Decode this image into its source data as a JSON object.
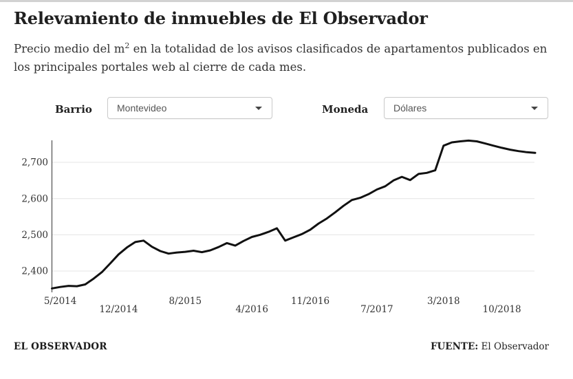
{
  "header": {
    "title": "Relevamiento de inmuebles de El Observador",
    "subtitle_prefix": "Precio medio del m",
    "subtitle_sup": "2",
    "subtitle_rest": " en la totalidad de los avisos clasificados de apartamentos publicados en los principales portales web al cierre de cada mes."
  },
  "controls": {
    "barrio": {
      "label": "Barrio",
      "value": "Montevideo"
    },
    "moneda": {
      "label": "Moneda",
      "value": "Dólares"
    }
  },
  "chart_data": {
    "type": "line",
    "title": "Relevamiento de inmuebles de El Observador",
    "xlabel": "",
    "ylabel": "",
    "frequency": "monthly",
    "x_start": "4/2014",
    "x_end": "2/2019",
    "values": [
      2352,
      2356,
      2359,
      2358,
      2363,
      2379,
      2397,
      2421,
      2446,
      2465,
      2480,
      2484,
      2467,
      2455,
      2448,
      2451,
      2453,
      2456,
      2452,
      2457,
      2466,
      2477,
      2470,
      2483,
      2494,
      2500,
      2508,
      2518,
      2484,
      2493,
      2502,
      2514,
      2531,
      2545,
      2562,
      2580,
      2596,
      2602,
      2612,
      2625,
      2634,
      2650,
      2660,
      2651,
      2668,
      2671,
      2678,
      2746,
      2755,
      2758,
      2760,
      2758,
      2752,
      2746,
      2740,
      2735,
      2731,
      2728,
      2726
    ],
    "x_ticks": [
      {
        "label": "5/2014",
        "index": 1
      },
      {
        "label": "12/2014",
        "index": 8
      },
      {
        "label": "8/2015",
        "index": 16
      },
      {
        "label": "4/2016",
        "index": 24
      },
      {
        "label": "11/2016",
        "index": 31
      },
      {
        "label": "7/2017",
        "index": 39
      },
      {
        "label": "3/2018",
        "index": 47
      },
      {
        "label": "10/2018",
        "index": 54
      }
    ],
    "y_ticks": [
      2400,
      2500,
      2600,
      2700
    ],
    "y_tick_labels": [
      "2,400",
      "2,500",
      "2,600",
      "2,700"
    ],
    "ylim": [
      2341,
      2765
    ],
    "grid": true,
    "legend": false,
    "line_color": "#111111",
    "grid_color": "#e4e4e4",
    "axis_color": "#333333"
  },
  "footer": {
    "brand": "EL OBSERVADOR",
    "source_label": "FUENTE:",
    "source_value": "El Observador"
  }
}
